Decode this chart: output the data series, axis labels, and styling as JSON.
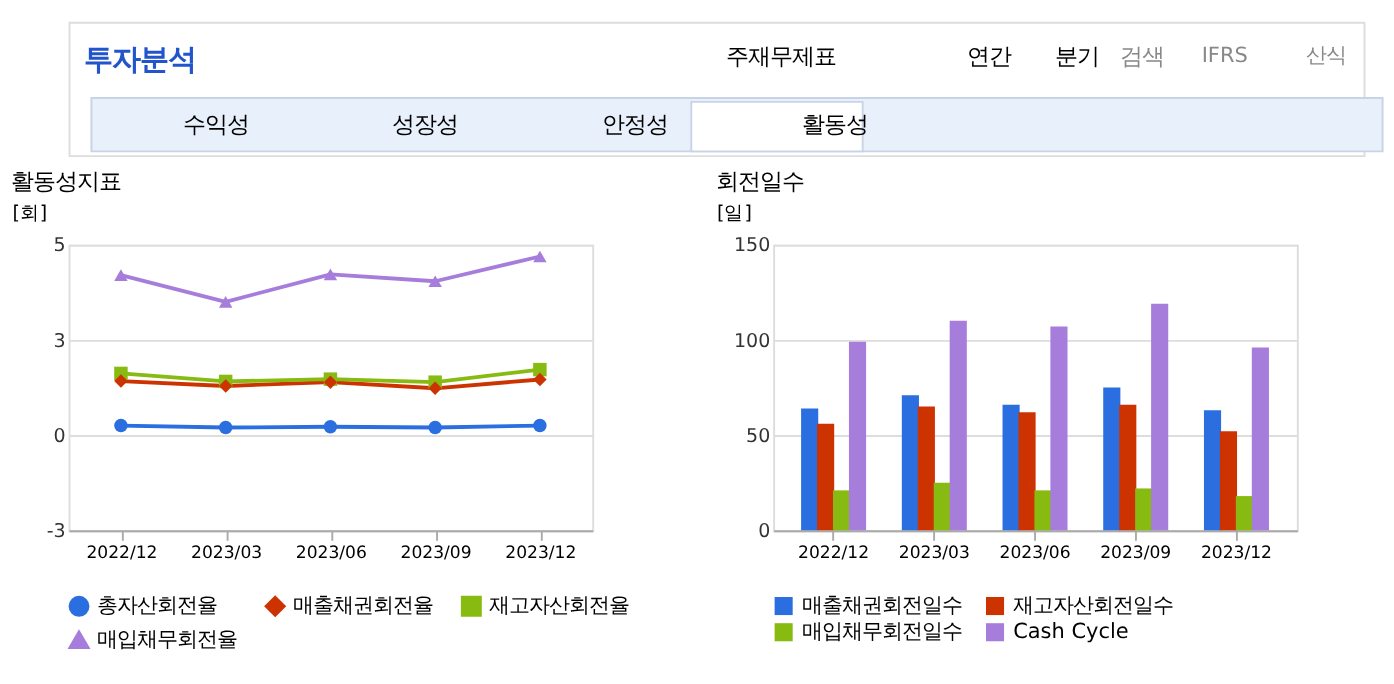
{
  "chart_data": [
    {
      "type": "other",
      "annotations": [
        "투자분석",
        "주재무제표",
        "연간",
        "분기",
        "검색",
        "IFRS",
        "산식",
        "수익성",
        "성장성",
        "안정성",
        "활동성"
      ]
    },
    {
      "type": "line",
      "title": "활동성지표",
      "ylabel": "[회]",
      "categories": [
        "2022/12",
        "2023/03",
        "2023/06",
        "2023/09",
        "2023/12"
      ],
      "series": [
        {
          "name": "총자산회전율",
          "color": "#2a6ee0",
          "marker": "circle",
          "values": [
            0.25,
            0.2,
            0.22,
            0.2,
            0.25
          ]
        },
        {
          "name": "매출채권회전율",
          "color": "#cc3300",
          "marker": "diamond",
          "values": [
            1.42,
            1.29,
            1.39,
            1.23,
            1.46
          ]
        },
        {
          "name": "재고자산회전율",
          "color": "#88bb11",
          "marker": "square",
          "values": [
            1.62,
            1.41,
            1.47,
            1.39,
            1.72
          ]
        },
        {
          "name": "매입채무회전율",
          "color": "#a77ddc",
          "marker": "triangle",
          "values": [
            4.2,
            3.5,
            4.22,
            4.04,
            4.69
          ]
        }
      ],
      "ylim": [
        -2.5,
        5
      ],
      "yticks": [
        {
          "value": -2.5,
          "label": "-3"
        },
        0,
        {
          "value": 2.5,
          "label": "3"
        },
        5
      ],
      "grid": "y",
      "legend": "bottom",
      "line_style": "solid"
    },
    {
      "type": "bar",
      "title": "회전일수",
      "ylabel": "[일]",
      "categories": [
        "2022/12",
        "2023/03",
        "2023/06",
        "2023/09",
        "2023/12"
      ],
      "series": [
        {
          "name": "매출채권회전일수",
          "color": "#2a6ee0",
          "values": [
            64,
            71,
            66,
            75,
            63
          ]
        },
        {
          "name": "재고자산회전일수",
          "color": "#cc3300",
          "values": [
            56,
            65,
            62,
            66,
            52
          ]
        },
        {
          "name": "매입채무회전일수",
          "color": "#88bb11",
          "values": [
            21,
            25,
            21,
            22,
            18
          ]
        },
        {
          "name": "Cash Cycle",
          "color": "#a77ddc",
          "values": [
            99,
            110,
            107,
            119,
            96
          ]
        }
      ],
      "ylim": [
        0,
        150
      ],
      "yticks": [
        0,
        50,
        100,
        150
      ],
      "grid": "y",
      "legend": "bottom"
    }
  ]
}
